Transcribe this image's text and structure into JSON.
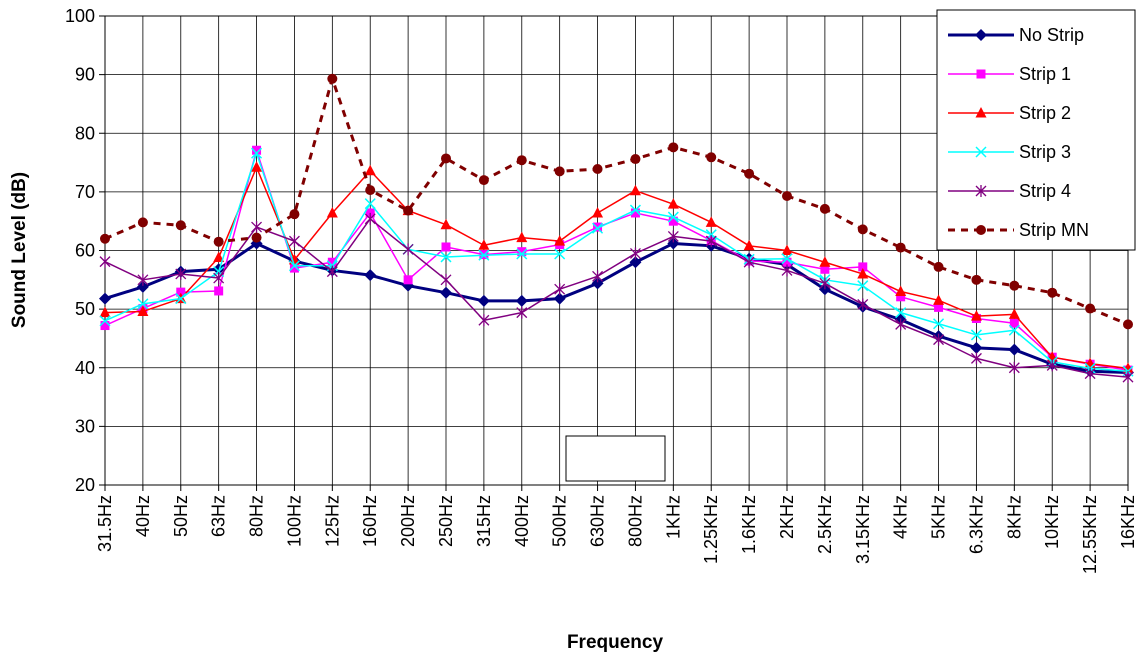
{
  "chart_data": {
    "type": "line",
    "title": "",
    "xlabel": "Frequency",
    "ylabel": "Sound Level (dB)",
    "ylim": [
      20,
      100
    ],
    "yticks": [
      20,
      30,
      40,
      50,
      60,
      70,
      80,
      90,
      100
    ],
    "grid": true,
    "legend_position": "top-right",
    "categories": [
      "31.5Hz",
      "40Hz",
      "50Hz",
      "63Hz",
      "80Hz",
      "100Hz",
      "125Hz",
      "160Hz",
      "200Hz",
      "250Hz",
      "315Hz",
      "400Hz",
      "500Hz",
      "630Hz",
      "800Hz",
      "1KHz",
      "1.25KHz",
      "1.6KHz",
      "2KHz",
      "2.5KHz",
      "3.15KHz",
      "4KHz",
      "5KHz",
      "6.3KHz",
      "8KHz",
      "10KHz",
      "12.55KHz",
      "16KHz"
    ],
    "series": [
      {
        "name": "No Strip",
        "color": "#000080",
        "marker": "diamond",
        "dash": "solid",
        "values": [
          51.8,
          53.8,
          56.4,
          56.8,
          61.2,
          58.2,
          56.6,
          55.8,
          54.0,
          52.8,
          51.4,
          51.4,
          51.8,
          54.4,
          58.0,
          61.2,
          60.8,
          58.6,
          57.6,
          53.4,
          50.4,
          48.2,
          45.4,
          43.4,
          43.1,
          40.6,
          39.4,
          39.2
        ]
      },
      {
        "name": "Strip 1",
        "color": "#ff00ff",
        "marker": "square",
        "dash": "solid",
        "values": [
          47.2,
          50.1,
          52.9,
          53.1,
          77.1,
          57.0,
          58.0,
          66.4,
          55.0,
          60.6,
          59.3,
          59.8,
          61.0,
          64.0,
          66.4,
          65.0,
          61.7,
          58.2,
          58.0,
          56.8,
          57.2,
          52.1,
          50.3,
          48.4,
          47.6,
          41.8,
          40.6,
          39.6
        ]
      },
      {
        "name": "Strip 2",
        "color": "#ff0000",
        "marker": "triangle",
        "dash": "solid",
        "values": [
          49.4,
          49.6,
          51.8,
          58.8,
          74.2,
          58.4,
          66.4,
          73.6,
          66.8,
          64.4,
          60.9,
          62.2,
          61.6,
          66.4,
          70.2,
          67.9,
          64.8,
          60.8,
          60.0,
          58.0,
          56.0,
          53.0,
          51.5,
          48.8,
          49.1,
          41.8,
          40.7,
          39.9
        ]
      },
      {
        "name": "Strip 3",
        "color": "#00ffff",
        "marker": "x",
        "dash": "solid",
        "values": [
          48.0,
          50.9,
          51.8,
          56.4,
          76.6,
          57.4,
          57.4,
          68.0,
          60.2,
          58.9,
          59.2,
          59.4,
          59.4,
          63.8,
          66.9,
          65.7,
          62.7,
          58.5,
          58.6,
          55.0,
          54.0,
          49.4,
          47.5,
          45.6,
          46.4,
          41.0,
          39.9,
          39.4
        ]
      },
      {
        "name": "Strip 4",
        "color": "#800080",
        "marker": "asterisk",
        "dash": "solid",
        "values": [
          58.1,
          55.0,
          56.0,
          55.3,
          64.0,
          61.6,
          56.4,
          65.4,
          60.2,
          55.0,
          48.1,
          49.4,
          53.4,
          55.6,
          59.5,
          62.4,
          61.6,
          58.0,
          56.6,
          54.4,
          50.8,
          47.4,
          44.8,
          41.6,
          40.0,
          40.4,
          39.0,
          38.4
        ]
      },
      {
        "name": "Strip MN",
        "color": "#800000",
        "marker": "circle",
        "dash": "dashed",
        "values": [
          62.0,
          64.8,
          64.3,
          61.5,
          62.2,
          66.2,
          89.3,
          70.3,
          66.8,
          75.7,
          72.0,
          75.4,
          73.5,
          73.9,
          75.6,
          77.6,
          75.9,
          73.1,
          69.3,
          67.1,
          63.6,
          60.5,
          57.2,
          55.0,
          54.0,
          52.8,
          50.1,
          47.4
        ]
      }
    ]
  }
}
